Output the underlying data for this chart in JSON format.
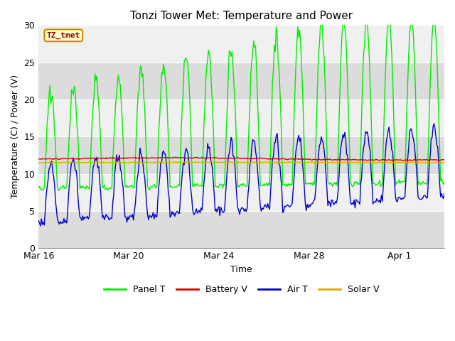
{
  "title": "Tonzi Tower Met: Temperature and Power",
  "xlabel": "Time",
  "ylabel": "Temperature (C) / Power (V)",
  "watermark": "TZ_tmet",
  "ylim": [
    0,
    30
  ],
  "fig_bg": "#ffffff",
  "plot_bg_light": "#f0f0f0",
  "plot_bg_dark": "#dcdcdc",
  "band_edges": [
    0,
    5,
    10,
    15,
    20,
    25,
    30
  ],
  "legend_entries": [
    "Panel T",
    "Battery V",
    "Air T",
    "Solar V"
  ],
  "panel_t_color": "#00ee00",
  "battery_v_color": "#dd0000",
  "air_t_color": "#0000cc",
  "solar_v_color": "#ddaa00",
  "title_fontsize": 11,
  "watermark_facecolor": "#ffffcc",
  "watermark_edgecolor": "#cc8800",
  "watermark_textcolor": "#880000"
}
